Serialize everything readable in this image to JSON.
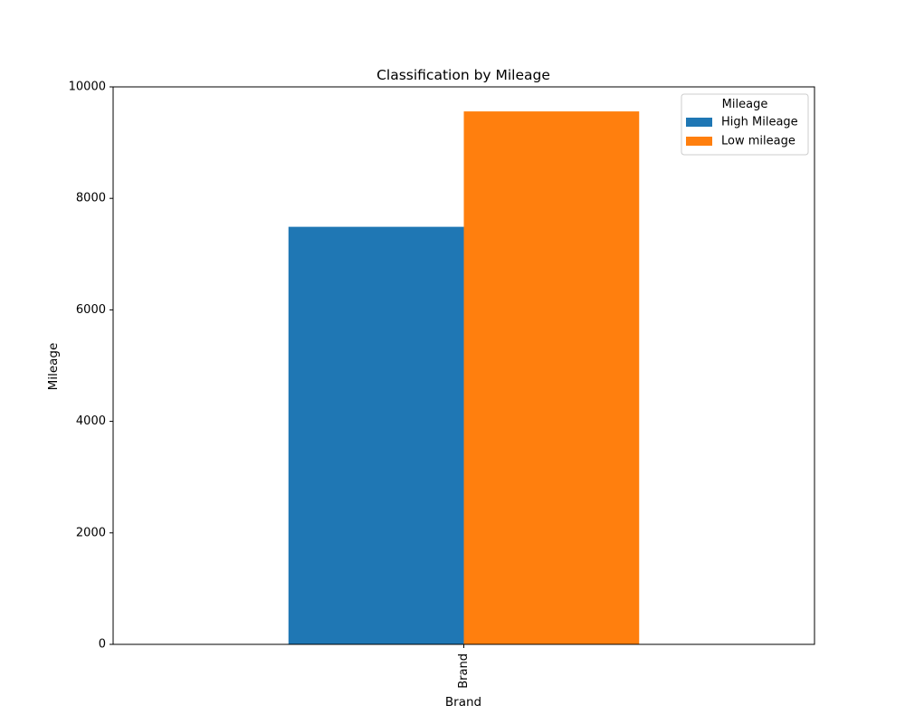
{
  "chart_data": {
    "type": "bar",
    "title": "Classification by Mileage",
    "xlabel": "Brand",
    "ylabel": "Mileage",
    "categories": [
      "Brand"
    ],
    "series": [
      {
        "name": "High Mileage",
        "values": [
          7490
        ],
        "color": "#1f77b4"
      },
      {
        "name": "Low mileage",
        "values": [
          9560
        ],
        "color": "#ff7f0e"
      }
    ],
    "ylim": [
      0,
      10000
    ],
    "yticks": [
      0,
      2000,
      4000,
      6000,
      8000,
      10000
    ],
    "grid": false,
    "legend": {
      "title": "Mileage",
      "placement": "top-right"
    }
  }
}
